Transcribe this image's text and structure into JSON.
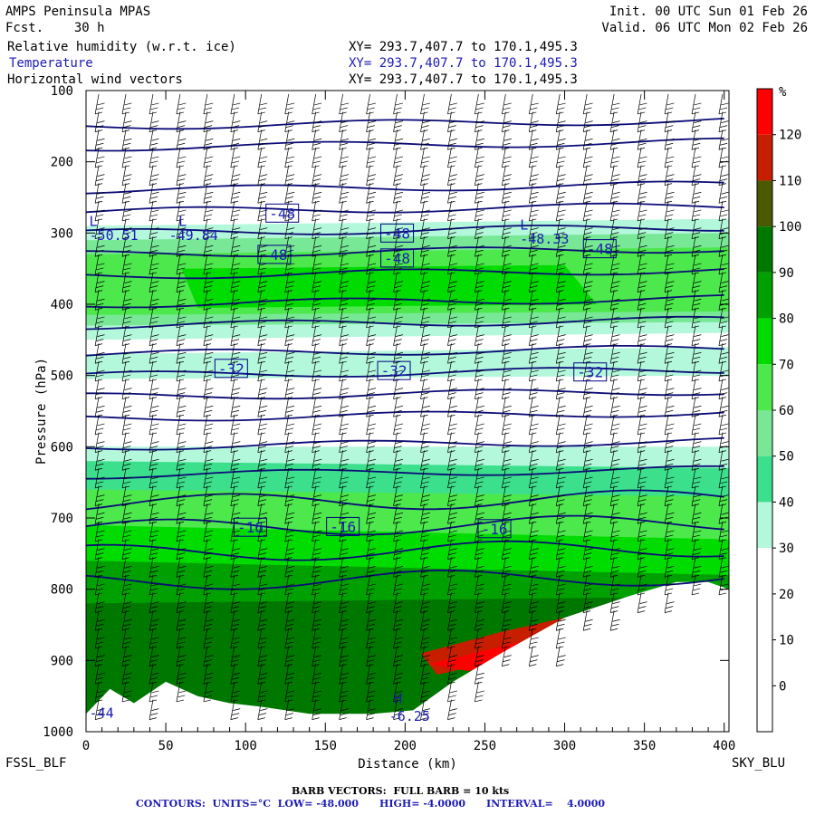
{
  "header": {
    "model": "AMPS Peninsula MPAS",
    "forecast": "Fcst.    30 h",
    "init": "Init. 00 UTC Sun 01 Feb 26",
    "valid": "Valid. 06 UTC Mon 02 Feb 26",
    "fields": [
      {
        "name": "Relative humidity (w.r.t. ice)",
        "xy": "XY= 293.7,407.7 to 170.1,495.3",
        "color": "#000000"
      },
      {
        "name": "Temperature",
        "xy": "XY= 293.7,407.7 to 170.1,495.3",
        "color": "#1c1cb4"
      },
      {
        "name": "Horizontal wind vectors",
        "xy": "XY= 293.7,407.7 to 170.1,495.3",
        "color": "#000000"
      }
    ]
  },
  "footer": {
    "left_station": "FSSL_BLF",
    "right_station": "SKY_BLU",
    "barb_note": "BARB VECTORS:  FULL BARB = 10 kts",
    "contour_note": "CONTOURS:  UNITS=°C  LOW= -48.000      HIGH= -4.0000      INTERVAL=    4.0000"
  },
  "chart_data": {
    "type": "heatmap",
    "title": "",
    "xlabel": "Distance (km)",
    "ylabel": "Pressure (hPa)",
    "xlim": [
      0,
      403
    ],
    "ylim": [
      1000,
      100
    ],
    "x_ticks": [
      0,
      50,
      100,
      150,
      200,
      250,
      300,
      350,
      400
    ],
    "y_ticks": [
      100,
      200,
      300,
      400,
      500,
      600,
      700,
      800,
      900,
      1000
    ],
    "colorbar": {
      "unit": "%",
      "labels": [
        120,
        110,
        100,
        90,
        80,
        70,
        60,
        50,
        40,
        30,
        20,
        10,
        0
      ],
      "colors": [
        "#ff0000",
        "#c81e00",
        "#4b5a00",
        "#007800",
        "#00a000",
        "#00dc00",
        "#4ce84c",
        "#78e896",
        "#3ce08c",
        "#b4f8dc",
        "#ffffff",
        "#ffffff",
        "#ffffff",
        "#ffffff"
      ]
    },
    "temperature_contour_labels": [
      {
        "text": "-48",
        "x": 123,
        "p": 272
      },
      {
        "text": "-48",
        "x": 195,
        "p": 300
      },
      {
        "text": "-48",
        "x": 118,
        "p": 330
      },
      {
        "text": "-48",
        "x": 195,
        "p": 335
      },
      {
        "text": "-48",
        "x": 322,
        "p": 322
      },
      {
        "text": "-32",
        "x": 91,
        "p": 490
      },
      {
        "text": "-32",
        "x": 193,
        "p": 493
      },
      {
        "text": "-32",
        "x": 316,
        "p": 495
      },
      {
        "text": "-16",
        "x": 103,
        "p": 713
      },
      {
        "text": "-16",
        "x": 161,
        "p": 712
      },
      {
        "text": "-16",
        "x": 256,
        "p": 715
      }
    ],
    "extrema": [
      {
        "text": "L",
        "x": 2,
        "p": 290
      },
      {
        "text": "-50.51",
        "x": 2,
        "p": 310
      },
      {
        "text": "L",
        "x": 58,
        "p": 290
      },
      {
        "text": "-49.84",
        "x": 52,
        "p": 310
      },
      {
        "text": "L",
        "x": 272,
        "p": 295
      },
      {
        "text": "-48.33",
        "x": 272,
        "p": 315
      },
      {
        "text": "H",
        "x": 193,
        "p": 960
      },
      {
        "text": "-6.25",
        "x": 190,
        "p": 985
      },
      {
        "text": "-44",
        "x": 2,
        "p": 980
      }
    ]
  }
}
